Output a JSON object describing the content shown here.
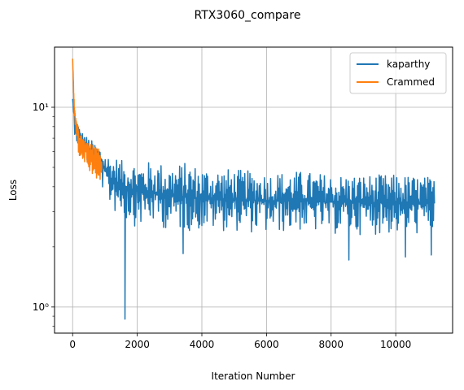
{
  "chart_data": {
    "type": "line",
    "title": "RTX3060_compare",
    "xlabel": "Iteration Number",
    "ylabel": "Loss",
    "xlim": [
      -560,
      11760
    ],
    "ylim": [
      0.74,
      20
    ],
    "yscale": "log",
    "grid": true,
    "legend_position": "top-right",
    "x_ticks": [
      0,
      2000,
      4000,
      6000,
      8000,
      10000
    ],
    "x_tick_labels": [
      "0",
      "2000",
      "4000",
      "6000",
      "8000",
      "10000"
    ],
    "y_major_ticks": [
      1,
      10
    ],
    "y_major_tick_labels": [
      "10⁰",
      "10¹"
    ],
    "series": [
      {
        "name": "kaparthy",
        "color": "#1f77b4",
        "x": [
          0,
          50,
          100,
          200,
          300,
          400,
          600,
          800,
          1000,
          1200,
          1400,
          1600,
          1800,
          2000,
          2500,
          3000,
          3500,
          4000,
          5000,
          6000,
          7000,
          8000,
          9000,
          10000,
          11000,
          11200
        ],
        "y": [
          11.0,
          8.8,
          8.0,
          7.2,
          6.8,
          6.5,
          6.0,
          5.6,
          4.8,
          4.4,
          4.2,
          4.0,
          3.9,
          3.8,
          3.7,
          3.6,
          3.55,
          3.5,
          3.45,
          3.4,
          3.4,
          3.35,
          3.35,
          3.3,
          3.3,
          3.3
        ],
        "y_max": [
          11.0,
          9.5,
          9.0,
          8.0,
          7.5,
          7.2,
          6.8,
          6.4,
          6.0,
          5.6,
          5.6,
          5.3,
          5.5,
          5.2,
          5.4,
          5.1,
          5.3,
          5.0,
          4.9,
          4.7,
          4.8,
          4.6,
          4.6,
          4.6,
          4.5,
          4.4
        ],
        "y_min": [
          11.0,
          7.5,
          6.8,
          6.0,
          5.6,
          5.3,
          4.9,
          4.4,
          3.6,
          3.0,
          2.9,
          2.7,
          2.6,
          2.5,
          2.6,
          2.4,
          2.4,
          2.4,
          2.4,
          2.3,
          2.4,
          2.3,
          2.3,
          2.3,
          2.3,
          2.4
        ]
      },
      {
        "name": "Crammed",
        "color": "#ff7f0e",
        "x": [
          0,
          30,
          60,
          100,
          150,
          200,
          300,
          400,
          500,
          600,
          700,
          800,
          900
        ],
        "y": [
          17.5,
          12.0,
          9.5,
          8.3,
          7.4,
          6.9,
          6.4,
          6.1,
          5.8,
          5.6,
          5.4,
          5.2,
          5.0
        ],
        "y_max": [
          17.5,
          13.5,
          10.5,
          9.3,
          8.4,
          7.8,
          7.2,
          6.9,
          6.7,
          6.5,
          6.4,
          6.3,
          6.1
        ],
        "y_min": [
          17.5,
          10.5,
          8.3,
          7.1,
          6.2,
          5.6,
          5.3,
          5.1,
          4.7,
          4.5,
          4.4,
          4.3,
          4.2
        ]
      }
    ],
    "kaparthy_dips": [
      {
        "x": 1620,
        "y": 0.87
      },
      {
        "x": 3420,
        "y": 1.85
      },
      {
        "x": 8550,
        "y": 1.72
      },
      {
        "x": 10300,
        "y": 1.78
      },
      {
        "x": 11100,
        "y": 1.82
      }
    ]
  }
}
